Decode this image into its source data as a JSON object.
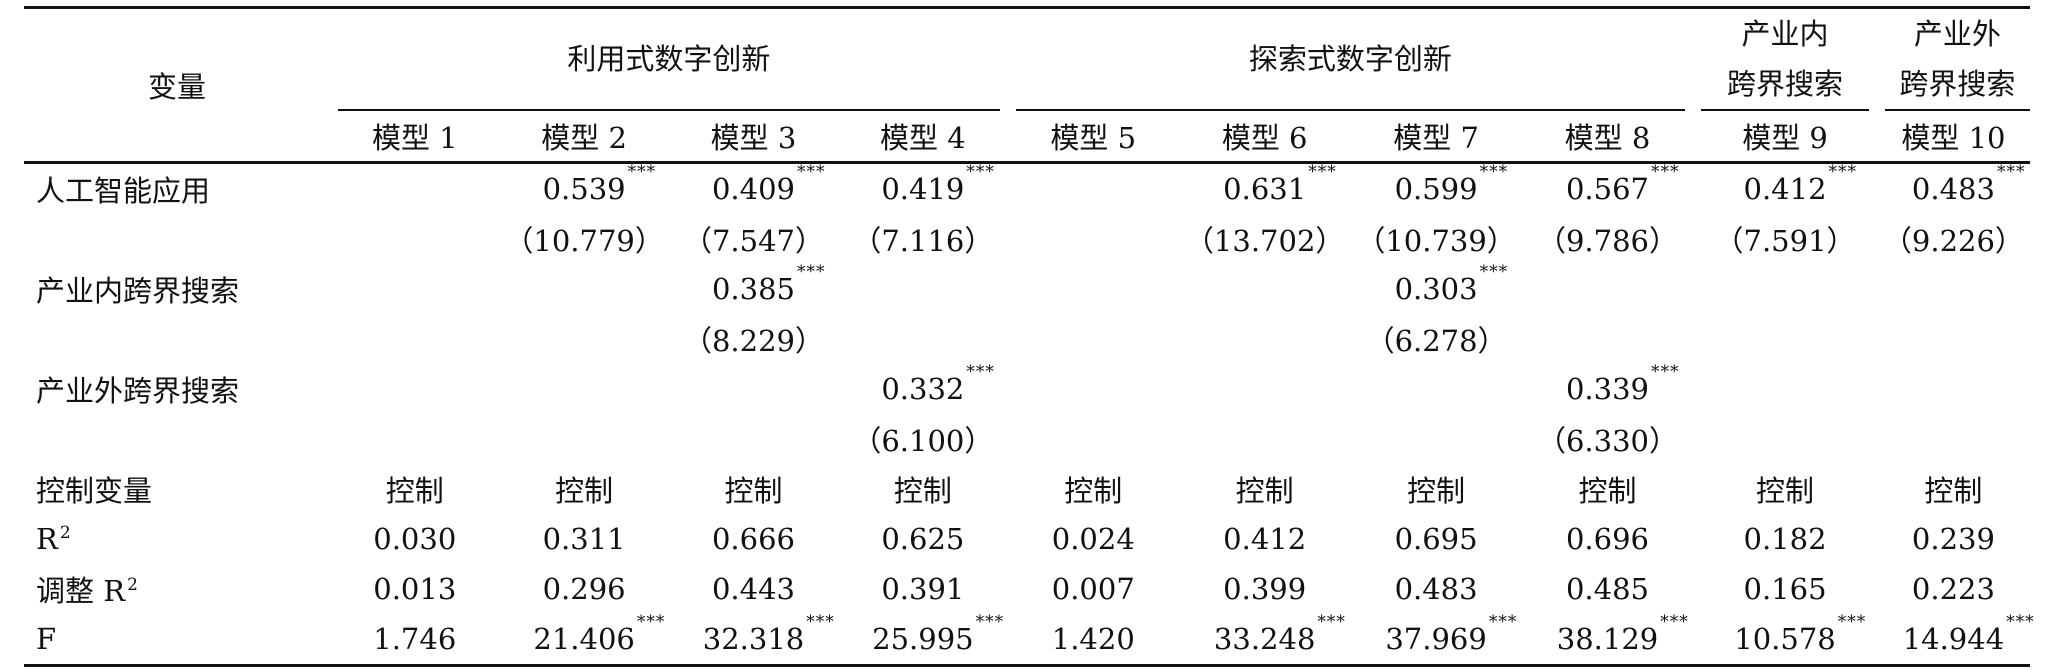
{
  "header": {
    "variable": "变量",
    "group_exploit": "利用式数字创新",
    "group_explore": "探索式数字创新",
    "group_internal": [
      "产业内",
      "跨界搜索"
    ],
    "group_external": [
      "产业外",
      "跨界搜索"
    ],
    "models": [
      "模型 1",
      "模型 2",
      "模型 3",
      "模型 4",
      "模型 5",
      "模型 6",
      "模型 7",
      "模型 8",
      "模型 9",
      "模型 10"
    ]
  },
  "rows": [
    {
      "label": "人工智能应用",
      "cells": [
        "",
        "0.539",
        "0.409",
        "0.419",
        "",
        "0.631",
        "0.599",
        "0.567",
        "0.412",
        "0.483"
      ],
      "stars": [
        "",
        "***",
        "***",
        "***",
        "",
        "***",
        "***",
        "***",
        "***",
        "***"
      ]
    },
    {
      "label": "",
      "cells": [
        "",
        "（10.779）",
        "（7.547）",
        "（7.116）",
        "",
        "（13.702）",
        "（10.739）",
        "（9.786）",
        "（7.591）",
        "（9.226）"
      ],
      "stars": [
        "",
        "",
        "",
        "",
        "",
        "",
        "",
        "",
        "",
        ""
      ]
    },
    {
      "label": "产业内跨界搜索",
      "cells": [
        "",
        "",
        "0.385",
        "",
        "",
        "",
        "0.303",
        "",
        "",
        ""
      ],
      "stars": [
        "",
        "",
        "***",
        "",
        "",
        "",
        "***",
        "",
        "",
        ""
      ]
    },
    {
      "label": "",
      "cells": [
        "",
        "",
        "（8.229）",
        "",
        "",
        "",
        "（6.278）",
        "",
        "",
        ""
      ],
      "stars": [
        "",
        "",
        "",
        "",
        "",
        "",
        "",
        "",
        "",
        ""
      ]
    },
    {
      "label": "产业外跨界搜索",
      "cells": [
        "",
        "",
        "",
        "0.332",
        "",
        "",
        "",
        "0.339",
        "",
        ""
      ],
      "stars": [
        "",
        "",
        "",
        "***",
        "",
        "",
        "",
        "***",
        "",
        ""
      ]
    },
    {
      "label": "",
      "cells": [
        "",
        "",
        "",
        "（6.100）",
        "",
        "",
        "",
        "（6.330）",
        "",
        ""
      ],
      "stars": [
        "",
        "",
        "",
        "",
        "",
        "",
        "",
        "",
        "",
        ""
      ]
    },
    {
      "label": "控制变量",
      "cells": [
        "控制",
        "控制",
        "控制",
        "控制",
        "控制",
        "控制",
        "控制",
        "控制",
        "控制",
        "控制"
      ],
      "stars": [
        "",
        "",
        "",
        "",
        "",
        "",
        "",
        "",
        "",
        ""
      ]
    },
    {
      "label": "R",
      "label_sup": "2",
      "cells": [
        "0.030",
        "0.311",
        "0.666",
        "0.625",
        "0.024",
        "0.412",
        "0.695",
        "0.696",
        "0.182",
        "0.239"
      ],
      "stars": [
        "",
        "",
        "",
        "",
        "",
        "",
        "",
        "",
        "",
        ""
      ]
    },
    {
      "label": "调整 R",
      "label_sup": "2",
      "cells": [
        "0.013",
        "0.296",
        "0.443",
        "0.391",
        "0.007",
        "0.399",
        "0.483",
        "0.485",
        "0.165",
        "0.223"
      ],
      "stars": [
        "",
        "",
        "",
        "",
        "",
        "",
        "",
        "",
        "",
        ""
      ]
    },
    {
      "label": "F",
      "cells": [
        "1.746",
        "21.406",
        "32.318",
        "25.995",
        "1.420",
        "33.248",
        "37.969",
        "38.129",
        "10.578",
        "14.944"
      ],
      "stars": [
        "",
        "***",
        "***",
        "***",
        "",
        "***",
        "***",
        "***",
        "***",
        "***"
      ]
    }
  ]
}
